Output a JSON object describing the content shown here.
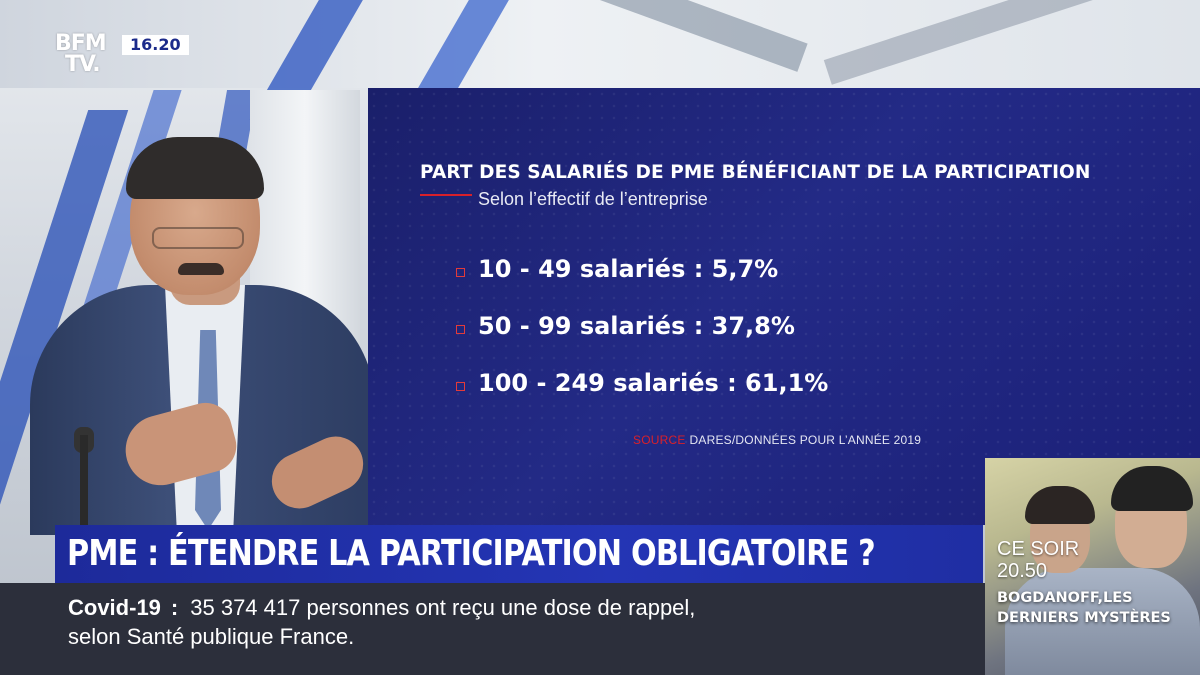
{
  "channel": {
    "logo_line1": "BFM",
    "logo_line2": "TV.",
    "time": "16.20"
  },
  "infographic": {
    "title": "PART DES SALARIÉS DE PME BÉNÉFICIANT DE LA PARTICIPATION",
    "subtitle": "Selon l’effectif de l’entreprise",
    "stats": [
      {
        "text": "10 - 49 salariés : 5,7%",
        "range": "10 - 49",
        "value": 5.7
      },
      {
        "text": "50 - 99 salariés : 37,8%",
        "range": "50 - 99",
        "value": 37.8
      },
      {
        "text": "100 - 249 salariés : 61,1%",
        "range": "100 - 249",
        "value": 61.1
      }
    ],
    "source_label": "SOURCE",
    "source_text": "DARES/DONNÉES POUR L’ANNÉE 2019",
    "colors": {
      "background": "#1f2580",
      "accent": "#d8202a"
    }
  },
  "headline": {
    "text": "PME : ÉTENDRE LA PARTICIPATION OBLIGATOIRE ?"
  },
  "ticker": {
    "tag": "Covid-19",
    "colon": ":",
    "line1": "35 374 417 personnes ont reçu une dose de rappel,",
    "line2": "selon Santé publique France."
  },
  "promo": {
    "tonight": "CE SOIR",
    "time": "20.50",
    "title": "BOGDANOFF,LES DERNIERS MYSTÈRES"
  }
}
